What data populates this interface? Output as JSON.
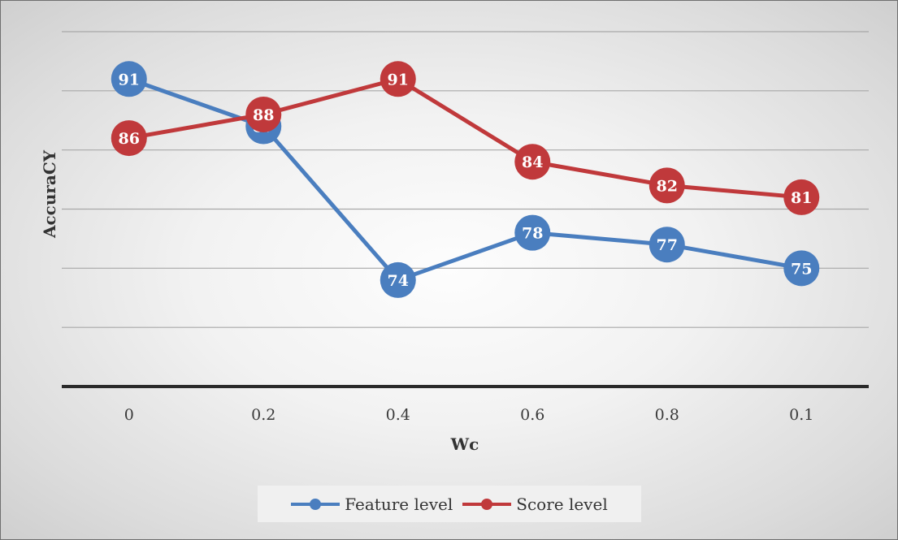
{
  "chart_data": {
    "type": "line",
    "title": "",
    "xlabel": "Wc",
    "ylabel": "AccuraCY",
    "categories": [
      "0",
      "0.2",
      "0.4",
      "0.6",
      "0.8",
      "0.1"
    ],
    "ylim": [
      65,
      95
    ],
    "grid": true,
    "y_tick_labels_shown": false,
    "data_labels": true,
    "legend_position": "bottom",
    "series": [
      {
        "name": "Feature level",
        "color": "#4a7ebf",
        "values": [
          91,
          87,
          74,
          78,
          77,
          75
        ],
        "labels": [
          "91",
          "87",
          "74",
          "78",
          "77",
          "75"
        ]
      },
      {
        "name": "Score level",
        "color": "#c0393b",
        "values": [
          86,
          88,
          91,
          84,
          82,
          81
        ],
        "labels": [
          "86",
          "88",
          "91",
          "84",
          "82",
          "81"
        ]
      }
    ]
  },
  "legend": {
    "items": [
      {
        "label": "Feature level",
        "color": "#4a7ebf"
      },
      {
        "label": "Score level",
        "color": "#c0393b"
      }
    ]
  }
}
